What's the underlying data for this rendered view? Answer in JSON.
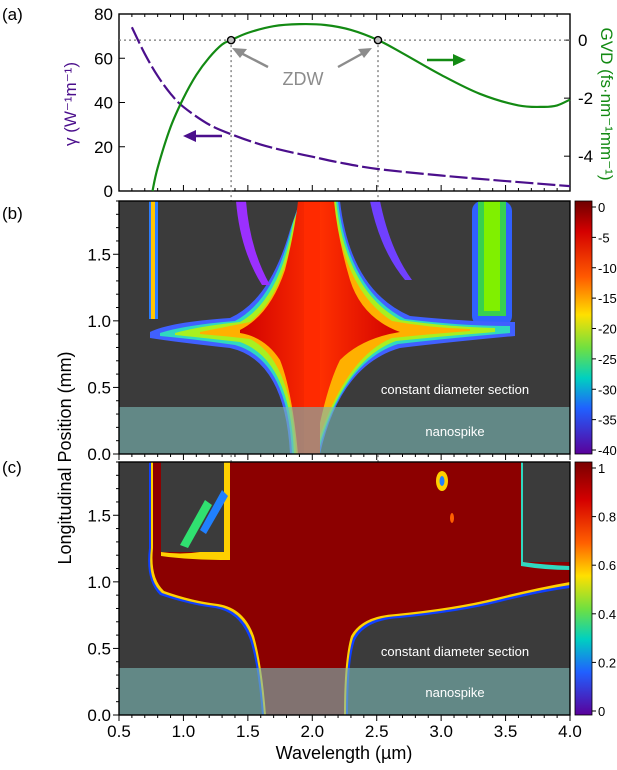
{
  "chart_data": [
    {
      "panel": "(a)",
      "type": "line",
      "xlim": [
        0.5,
        4.0
      ],
      "ylim_left": [
        0,
        80
      ],
      "ylim_right": [
        -5.2,
        0.9
      ],
      "left_ticks": [
        0,
        20,
        40,
        60,
        80
      ],
      "right_ticks": [
        0,
        -2,
        -4
      ],
      "ylabel_left": "γ (W⁻¹m⁻¹)",
      "ylabel_right": "GVD (fs·nm⁻¹mm⁻¹)",
      "colors": {
        "gamma": "#4b0f8c",
        "gvd": "#138a13",
        "zdw": "#8c8c8c"
      },
      "series": [
        {
          "axis": "left",
          "style": "dashed",
          "x": [
            0.6,
            0.7,
            0.8,
            0.9,
            1.0,
            1.2,
            1.4,
            1.6,
            1.8,
            2.0,
            2.2,
            2.5,
            3.0,
            3.5,
            4.0
          ],
          "y": [
            74,
            62,
            52,
            44,
            38,
            30,
            25,
            21,
            18,
            15.5,
            13,
            10,
            7,
            4.5,
            2.2
          ]
        },
        {
          "axis": "right",
          "style": "solid",
          "x": [
            0.76,
            0.8,
            0.9,
            1.0,
            1.1,
            1.2,
            1.3,
            1.37,
            1.5,
            1.7,
            1.9,
            2.1,
            2.3,
            2.51,
            2.7,
            3.0,
            3.3,
            3.6,
            3.8,
            3.9,
            4.0
          ],
          "y": [
            -5.2,
            -4.4,
            -3.0,
            -2.0,
            -1.2,
            -0.6,
            -0.15,
            0,
            0.25,
            0.48,
            0.55,
            0.52,
            0.35,
            0,
            -0.45,
            -1.2,
            -1.85,
            -2.25,
            -2.3,
            -2.25,
            -2.05
          ]
        }
      ],
      "zdw": [
        1.37,
        2.51
      ],
      "zdw_label": "ZDW"
    },
    {
      "panel": "(b)",
      "type": "heatmap",
      "xlim": [
        0.5,
        4.0
      ],
      "ylim": [
        0.0,
        1.9
      ],
      "colorbar": {
        "min": -40,
        "max": 0,
        "ticks": [
          "0",
          "-5",
          "-10",
          "-15",
          "-20",
          "-25",
          "-30",
          "-35",
          "-40"
        ]
      },
      "regions": [
        "constant diameter section",
        "nanospike"
      ],
      "nanospike_top": 0.35
    },
    {
      "panel": "(c)",
      "type": "heatmap",
      "xlim": [
        0.5,
        4.0
      ],
      "ylim": [
        0.0,
        1.9
      ],
      "colorbar": {
        "min": 0,
        "max": 1,
        "ticks": [
          "1",
          "0.8",
          "0.6",
          "0.4",
          "0.2",
          "0"
        ]
      },
      "regions": [
        "constant diameter section",
        "nanospike"
      ],
      "nanospike_top": 0.35
    }
  ],
  "labels": {
    "panel_a": "(a)",
    "panel_b": "(b)",
    "panel_c": "(c)",
    "y_left_a": "γ (W⁻¹m⁻¹)",
    "y_right_a": "GVD (fs·nm⁻¹mm⁻¹)",
    "y_shared": "Longitudinal Position (mm)",
    "x_axis": "Wavelength (µm)",
    "zdw": "ZDW",
    "constant_b": "constant diameter section",
    "nano_b": "nanospike",
    "constant_c": "constant diameter section",
    "nano_c": "nanospike"
  },
  "x_ticks": [
    "0.5",
    "1.0",
    "1.5",
    "2.0",
    "2.5",
    "3.0",
    "3.5",
    "4.0"
  ],
  "y_ticks_heat": [
    "0.0",
    "0.5",
    "1.0",
    "1.5"
  ]
}
